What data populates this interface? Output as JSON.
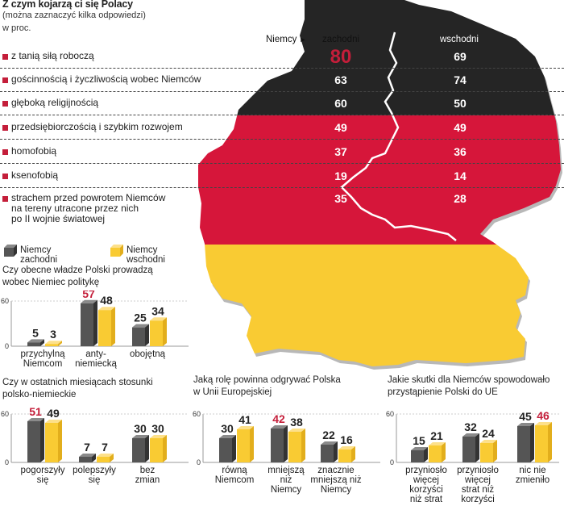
{
  "header": {
    "title": "Z czym kojarzą ci się Polacy",
    "subtitle": "(można zaznaczyć kilka odpowiedzi)",
    "unit": "w proc."
  },
  "map": {
    "niemcy_label": "Niemcy",
    "col_west": "zachodni",
    "col_east": "wschodni",
    "flag_colors": {
      "black": "#252525",
      "red": "#d6163a",
      "gold": "#f9cb33"
    },
    "accent": "#c41e3a"
  },
  "associations": [
    {
      "label": "z tanią siłą roboczą",
      "west": "80",
      "east": "69"
    },
    {
      "label": "gościnnością i życzliwością wobec Niemców",
      "west": "63",
      "east": "74"
    },
    {
      "label": "głęboką religijnością",
      "west": "60",
      "east": "50"
    },
    {
      "label": "przedsiębiorczością i szybkim rozwojem",
      "west": "49",
      "east": "49"
    },
    {
      "label": "homofobią",
      "west": "37",
      "east": "36"
    },
    {
      "label": "ksenofobią",
      "west": "19",
      "east": "14"
    },
    {
      "label": "strachem przed powrotem Niemców\nna tereny utracone przez nich\npo II wojnie światowej",
      "west": "35",
      "east": "28"
    }
  ],
  "legend": {
    "west": "Niemcy zachodni",
    "east": "Niemcy wschodni",
    "west_color": "#555555",
    "east_color": "#f9cb33"
  },
  "chart_data": [
    {
      "type": "bar",
      "title": "Czy obecne władze Polski prowadzą\nwobec Niemiec politykę",
      "categories": [
        "przychylną\nNiemcom",
        "anty-\nniemiecką",
        "obojętną"
      ],
      "series": [
        {
          "name": "Niemcy zachodni",
          "values": [
            5,
            57,
            25
          ]
        },
        {
          "name": "Niemcy wschodni",
          "values": [
            3,
            48,
            34
          ]
        }
      ],
      "highlight": [
        [
          false,
          true,
          false
        ],
        [
          false,
          false,
          false
        ]
      ],
      "ylim": [
        0,
        60
      ],
      "yticks": [
        "0",
        "60"
      ]
    },
    {
      "type": "bar",
      "title": "Czy w ostatnich miesiącach stosunki\npolsko-niemieckie",
      "categories": [
        "pogorszyły\nsię",
        "polepszyły\nsię",
        "bez\nzmian"
      ],
      "series": [
        {
          "name": "Niemcy zachodni",
          "values": [
            51,
            7,
            30
          ]
        },
        {
          "name": "Niemcy wschodni",
          "values": [
            49,
            7,
            30
          ]
        }
      ],
      "highlight": [
        [
          true,
          false,
          false
        ],
        [
          false,
          false,
          false
        ]
      ],
      "ylim": [
        0,
        60
      ],
      "yticks": [
        "0",
        "60"
      ]
    },
    {
      "type": "bar",
      "title": "Jaką rolę powinna odgrywać Polska\nw Unii Europejskiej",
      "categories": [
        "równą\nNiemcom",
        "mniejszą\nniż\nNiemcy",
        "znacznie\nmniejszą niż\nNiemcy"
      ],
      "series": [
        {
          "name": "Niemcy zachodni",
          "values": [
            30,
            42,
            22
          ]
        },
        {
          "name": "Niemcy wschodni",
          "values": [
            41,
            38,
            16
          ]
        }
      ],
      "highlight": [
        [
          false,
          true,
          false
        ],
        [
          false,
          false,
          false
        ]
      ],
      "ylim": [
        0,
        60
      ],
      "yticks": [
        "0",
        "60"
      ]
    },
    {
      "type": "bar",
      "title": "Jakie skutki dla Niemców spowodowało\nprzystąpienie Polski do UE",
      "categories": [
        "przyniosło\nwięcej\nkorzyści\nniż strat",
        "przyniosło\nwięcej\nstrat niż\nkorzyści",
        "nic nie\nzmieniło"
      ],
      "series": [
        {
          "name": "Niemcy zachodni",
          "values": [
            15,
            32,
            45
          ]
        },
        {
          "name": "Niemcy wschodni",
          "values": [
            21,
            24,
            46
          ]
        }
      ],
      "highlight": [
        [
          false,
          false,
          false
        ],
        [
          false,
          false,
          true
        ]
      ],
      "ylim": [
        0,
        60
      ],
      "yticks": [
        "0",
        "60"
      ]
    }
  ]
}
